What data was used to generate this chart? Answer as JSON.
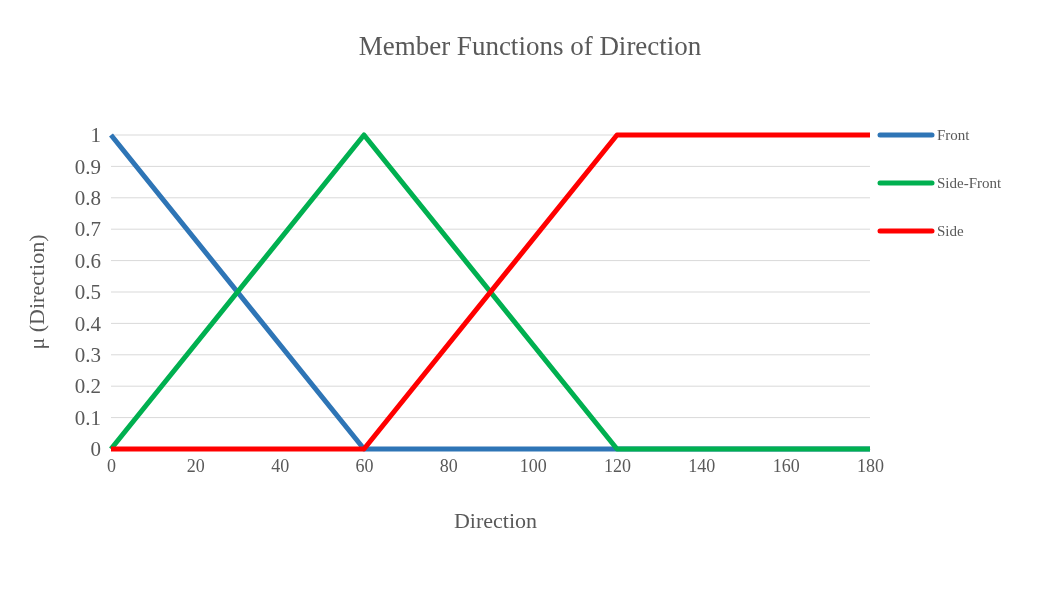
{
  "chart_data": {
    "type": "line",
    "title": "Member Functions of Direction",
    "xlabel": "Direction",
    "ylabel": "μ (Direction)",
    "xlim": [
      0,
      180
    ],
    "xticks": [
      0,
      20,
      40,
      60,
      80,
      100,
      120,
      140,
      160,
      180
    ],
    "ylim": [
      0,
      1
    ],
    "yticks": [
      0,
      0.1,
      0.2,
      0.3,
      0.4,
      0.5,
      0.6,
      0.7,
      0.8,
      0.9,
      1
    ],
    "grid": "y",
    "legend": "right",
    "marker": "none",
    "line_style": "solid",
    "series": [
      {
        "name": "Front",
        "color": "#2e75b6",
        "x": [
          0,
          60,
          120,
          180
        ],
        "values": [
          1,
          0,
          0,
          0
        ]
      },
      {
        "name": "Side-Front",
        "color": "#00b050",
        "x": [
          0,
          60,
          120,
          180
        ],
        "values": [
          0,
          1,
          0,
          0
        ]
      },
      {
        "name": "Side",
        "color": "#ff0000",
        "x": [
          0,
          60,
          120,
          180
        ],
        "values": [
          0,
          0,
          1,
          1
        ]
      }
    ]
  }
}
